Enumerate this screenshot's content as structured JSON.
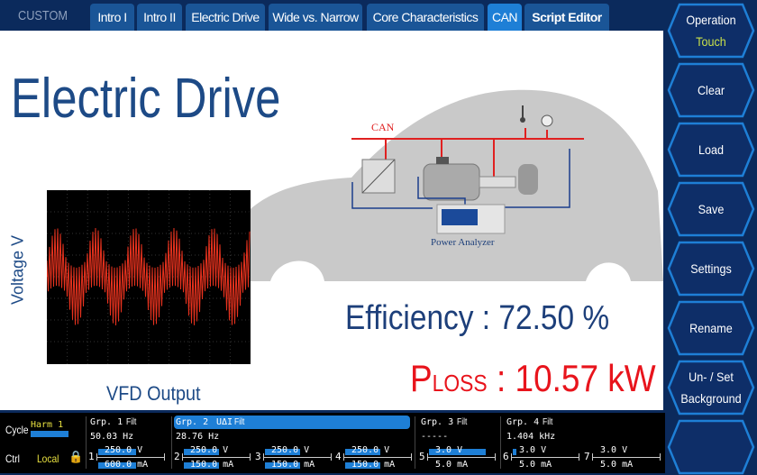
{
  "topbar": {
    "mode": "CUSTOM",
    "tabs": [
      {
        "label": "Intro I"
      },
      {
        "label": "Intro II"
      },
      {
        "label": "Electric Drive"
      },
      {
        "label": "Wide vs. Narrow"
      },
      {
        "label": "Core Characteristics"
      },
      {
        "label": "CAN",
        "active": true
      },
      {
        "label": "Script Editor"
      }
    ]
  },
  "main": {
    "title": "Electric Drive",
    "y_axis_label": "Voltage V",
    "scope_caption": "VFD Output",
    "diagram": {
      "bus_label": "CAN",
      "device_label": "Power Analyzer"
    },
    "efficiency": "Efficiency : 72.50 %",
    "ploss_symbol": "P",
    "ploss_sub": "LOSS",
    "ploss_value": " : 10.57 kW"
  },
  "sidebar": {
    "buttons": [
      {
        "label": "Operation",
        "sub": "Touch"
      },
      {
        "label": "Clear"
      },
      {
        "label": "Load"
      },
      {
        "label": "Save"
      },
      {
        "label": "Settings"
      },
      {
        "label": "Rename"
      },
      {
        "label": "Un- / Set",
        "sub": "Background"
      },
      {
        "label": ""
      }
    ]
  },
  "status": {
    "cycle_label": "Cycle",
    "cycle_value": "Harm 1",
    "ctrl_label": "Ctrl",
    "ctrl_value": "Local",
    "groups": [
      {
        "name": "Grp. 1",
        "filt": "Filt",
        "freq": "50.03  Hz"
      },
      {
        "name": "Grp. 2",
        "extra": "UΔI",
        "filt": "Filt",
        "freq": "28.76  Hz"
      },
      {
        "name": "Grp. 3",
        "filt": "Filt",
        "freq": "-----"
      },
      {
        "name": "Grp. 4",
        "filt": "Filt",
        "freq": "1.404 kHz"
      }
    ],
    "channels": [
      {
        "n": "1",
        "v": "250.0 V",
        "i": "600.0 mA"
      },
      {
        "n": "2",
        "v": "250.0 V",
        "i": "150.0 mA"
      },
      {
        "n": "3",
        "v": "250.0 V",
        "i": "150.0 mA"
      },
      {
        "n": "4",
        "v": "250.0 V",
        "i": "150.0 mA"
      },
      {
        "n": "5",
        "v": "3.0 V",
        "i": "5.0 mA"
      },
      {
        "n": "6",
        "v": "3.0 V",
        "i": "5.0 mA"
      },
      {
        "n": "7",
        "v": "3.0 V",
        "i": "5.0 mA"
      }
    ]
  },
  "colors": {
    "navy": "#0b2a5c",
    "accent": "#1e7fd6",
    "title": "#1d4a86",
    "loss": "#e8141c",
    "highlight": "#c8e04a"
  }
}
